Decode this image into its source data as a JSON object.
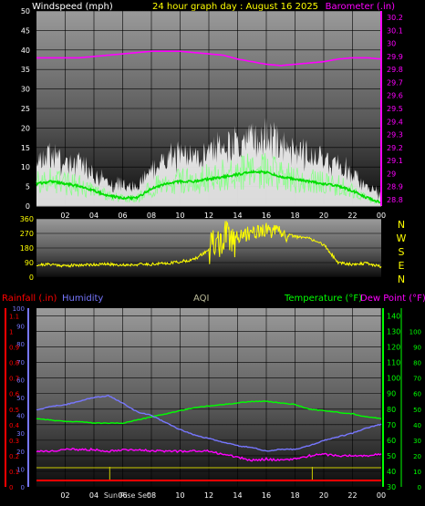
{
  "header": {
    "left": "Windspeed (mph)",
    "center": "24 hour graph day : August 16 2025",
    "right": "Barometer (.in)"
  },
  "colors": {
    "wind": "#ffffff",
    "gust": "#cccccc",
    "wind_avg": "#00dd00",
    "barometer": "#ff00ff",
    "direction": "#ffff00",
    "temperature": "#00ff00",
    "dew_point": "#ff00ff",
    "humidity": "#7777ff",
    "rain_label": "#ff0000",
    "humidity_label": "#7777ff",
    "aqi_label": "#bbbb99",
    "dew_label": "#ff00ff",
    "temp_label": "#00ff00",
    "sun": "#cccc00"
  },
  "chart_data": [
    {
      "id": "wind",
      "type": "line",
      "x_ticks": [
        "02",
        "04",
        "06",
        "08",
        "10",
        "12",
        "14",
        "16",
        "18",
        "20",
        "22",
        "00"
      ],
      "y_left": {
        "ticks": [
          "0",
          "5",
          "10",
          "15",
          "20",
          "25",
          "30",
          "35",
          "40",
          "45",
          "50"
        ],
        "range": [
          0,
          50
        ]
      },
      "y_right": {
        "ticks": [
          "28.8",
          "28.9",
          "29",
          "29.1",
          "29.2",
          "29.3",
          "29.4",
          "29.5",
          "29.6",
          "29.7",
          "29.8",
          "29.9",
          "30",
          "30.1",
          "30.2"
        ],
        "range": [
          28.75,
          30.25
        ]
      },
      "series": [
        {
          "name": "Windspeed (mph)",
          "x": [
            0,
            1,
            2,
            3,
            4,
            5,
            6,
            7,
            8,
            9,
            10,
            11,
            12,
            13,
            14,
            15,
            16,
            17,
            18,
            19,
            20,
            21,
            22,
            23,
            24
          ],
          "y": [
            9,
            10,
            9,
            8,
            6,
            4,
            3,
            3,
            7,
            9,
            10,
            10,
            11,
            12,
            13,
            14,
            14,
            12,
            11,
            10,
            9,
            8,
            6,
            3,
            1
          ]
        },
        {
          "name": "Barometer (.in)",
          "x": [
            0,
            1,
            2,
            3,
            4,
            5,
            6,
            7,
            8,
            9,
            10,
            11,
            12,
            13,
            14,
            15,
            16,
            17,
            18,
            19,
            20,
            21,
            22,
            23,
            24
          ],
          "y": [
            29.89,
            29.89,
            29.89,
            29.89,
            29.9,
            29.91,
            29.92,
            29.93,
            29.94,
            29.94,
            29.94,
            29.93,
            29.92,
            29.91,
            29.88,
            29.86,
            29.84,
            29.83,
            29.84,
            29.85,
            29.86,
            29.88,
            29.89,
            29.89,
            29.88
          ]
        }
      ]
    },
    {
      "id": "direction",
      "type": "line",
      "x_ticks": [],
      "y_left": {
        "ticks": [
          "0",
          "90",
          "180",
          "270",
          "360"
        ],
        "range": [
          0,
          360
        ]
      },
      "compass": [
        "N",
        "W",
        "S",
        "E",
        "N"
      ],
      "series": [
        {
          "name": "",
          "x": [
            0,
            1,
            2,
            3,
            4,
            5,
            6,
            7,
            8,
            9,
            10,
            11,
            12,
            13,
            14,
            15,
            16,
            17,
            18,
            19,
            20,
            21,
            22,
            23,
            24
          ],
          "y": [
            75,
            80,
            70,
            75,
            78,
            80,
            75,
            78,
            80,
            85,
            95,
            110,
            170,
            230,
            240,
            280,
            290,
            270,
            250,
            240,
            200,
            90,
            80,
            85,
            65
          ]
        }
      ]
    },
    {
      "id": "climate",
      "type": "line",
      "x_ticks": [
        "02",
        "04",
        "06",
        "08",
        "10",
        "12",
        "14",
        "16",
        "18",
        "20",
        "22",
        "00"
      ],
      "labels": {
        "rain": "Rainfall (.in)",
        "humidity": "Humidity",
        "aqi": "AQI",
        "temp": "Temperature (°F)",
        "dew": "Dew Point (°F)"
      },
      "y_humidity": {
        "ticks": [
          "0",
          "10",
          "20",
          "30",
          "40",
          "50",
          "60",
          "70",
          "80",
          "90",
          "100"
        ],
        "range": [
          0,
          100
        ]
      },
      "y_rain": {
        "ticks": [
          "0",
          "0.1",
          "0.2",
          "0.3",
          "0.4",
          "0.5",
          "0.6",
          "0.7",
          "0.8",
          "0.9",
          "1",
          "1.1"
        ],
        "range": [
          0,
          1.15
        ]
      },
      "y_temp": {
        "ticks": [
          "30",
          "40",
          "50",
          "60",
          "70",
          "80",
          "90",
          "100",
          "110",
          "120",
          "130",
          "140"
        ],
        "range": [
          30,
          145
        ]
      },
      "y_far": {
        "ticks": [
          "0",
          "10",
          "20",
          "30",
          "40",
          "50",
          "60",
          "70",
          "80",
          "90",
          "100"
        ],
        "range": [
          0,
          115
        ]
      },
      "sun_label": "Sun Rise Set",
      "sun_markers": [
        5.1,
        19.2
      ],
      "series": [
        {
          "name": "Temperature (°F)",
          "x": [
            0,
            1,
            2,
            3,
            4,
            5,
            6,
            7,
            8,
            9,
            10,
            11,
            12,
            13,
            14,
            15,
            16,
            17,
            18,
            19,
            20,
            21,
            22,
            23,
            24
          ],
          "y": [
            74,
            73,
            72,
            72,
            71,
            71,
            71,
            73,
            75,
            77,
            79,
            81,
            82,
            83,
            84,
            85,
            85,
            84,
            83,
            80,
            79,
            78,
            77,
            75,
            74
          ]
        },
        {
          "name": "Dew Point (°F)",
          "x": [
            0,
            1,
            2,
            3,
            4,
            5,
            6,
            7,
            8,
            9,
            10,
            11,
            12,
            13,
            14,
            15,
            16,
            17,
            18,
            19,
            20,
            21,
            22,
            23,
            24
          ],
          "y": [
            53,
            53,
            54,
            54,
            54,
            53,
            54,
            54,
            53,
            53,
            53,
            53,
            53,
            51,
            49,
            47,
            48,
            47,
            48,
            50,
            51,
            50,
            50,
            50,
            51
          ]
        },
        {
          "name": "Humidity",
          "x": [
            0,
            1,
            2,
            3,
            4,
            5,
            6,
            7,
            8,
            9,
            10,
            11,
            12,
            13,
            14,
            15,
            16,
            17,
            18,
            19,
            20,
            21,
            22,
            23,
            24
          ],
          "y": [
            43,
            45,
            46,
            48,
            50,
            51,
            47,
            42,
            40,
            36,
            32,
            29,
            27,
            25,
            23,
            22,
            20,
            21,
            21,
            23,
            26,
            28,
            30,
            33,
            35
          ]
        }
      ]
    }
  ]
}
